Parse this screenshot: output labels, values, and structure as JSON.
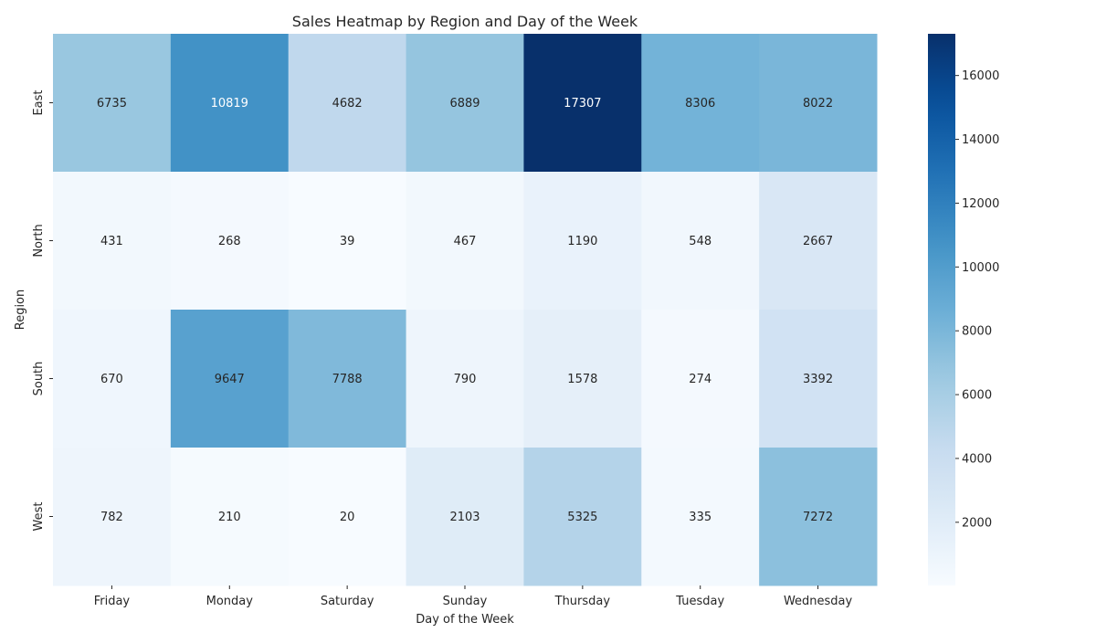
{
  "chart_data": {
    "type": "heatmap",
    "title": "Sales Heatmap by Region and Day of the Week",
    "xlabel": "Day of the Week",
    "ylabel": "Region",
    "x_categories": [
      "Friday",
      "Monday",
      "Saturday",
      "Sunday",
      "Thursday",
      "Tuesday",
      "Wednesday"
    ],
    "y_categories": [
      "East",
      "North",
      "South",
      "West"
    ],
    "values": [
      [
        6735,
        10819,
        4682,
        6889,
        17307,
        8306,
        8022
      ],
      [
        431,
        268,
        39,
        467,
        1190,
        548,
        2667
      ],
      [
        670,
        9647,
        7788,
        790,
        1578,
        274,
        3392
      ],
      [
        782,
        210,
        20,
        2103,
        5325,
        335,
        7272
      ]
    ],
    "colormap": "Blues",
    "vmin": 20,
    "vmax": 17307,
    "colorbar_ticks": [
      2000,
      4000,
      6000,
      8000,
      10000,
      12000,
      14000,
      16000
    ],
    "annotations": true
  }
}
